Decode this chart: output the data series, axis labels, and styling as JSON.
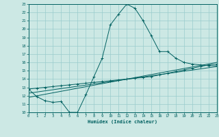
{
  "xlabel": "Humidex (Indice chaleur)",
  "bg_color": "#cce8e4",
  "line_color": "#006060",
  "grid_color": "#99cccc",
  "xmin": 0,
  "xmax": 23,
  "ymin": 10,
  "ymax": 23,
  "lines": [
    {
      "x": [
        0,
        1,
        2,
        3,
        4,
        5,
        6,
        7,
        8,
        9,
        10,
        11,
        12,
        13,
        14,
        15,
        16,
        17,
        18,
        19,
        20,
        21,
        22,
        23
      ],
      "y": [
        12.8,
        11.9,
        11.4,
        11.2,
        11.3,
        10.0,
        10.0,
        12.1,
        14.3,
        16.5,
        20.5,
        21.8,
        23.0,
        22.5,
        21.0,
        19.2,
        17.3,
        17.3,
        16.5,
        16.0,
        15.8,
        15.7,
        15.6,
        15.6
      ],
      "has_markers": true
    },
    {
      "x": [
        0,
        1,
        2,
        3,
        4,
        5,
        6,
        7,
        8,
        9,
        10,
        11,
        12,
        13,
        14,
        15,
        16,
        17,
        18,
        19,
        20,
        21,
        22,
        23
      ],
      "y": [
        12.8,
        12.9,
        13.0,
        13.1,
        13.2,
        13.3,
        13.4,
        13.5,
        13.6,
        13.7,
        13.8,
        13.9,
        14.0,
        14.1,
        14.2,
        14.3,
        14.5,
        14.7,
        14.9,
        15.1,
        15.3,
        15.5,
        15.7,
        15.8
      ],
      "has_markers": true
    },
    {
      "x": [
        0,
        23
      ],
      "y": [
        12.3,
        15.5
      ],
      "has_markers": false
    },
    {
      "x": [
        0,
        23
      ],
      "y": [
        11.8,
        16.0
      ],
      "has_markers": false
    }
  ]
}
